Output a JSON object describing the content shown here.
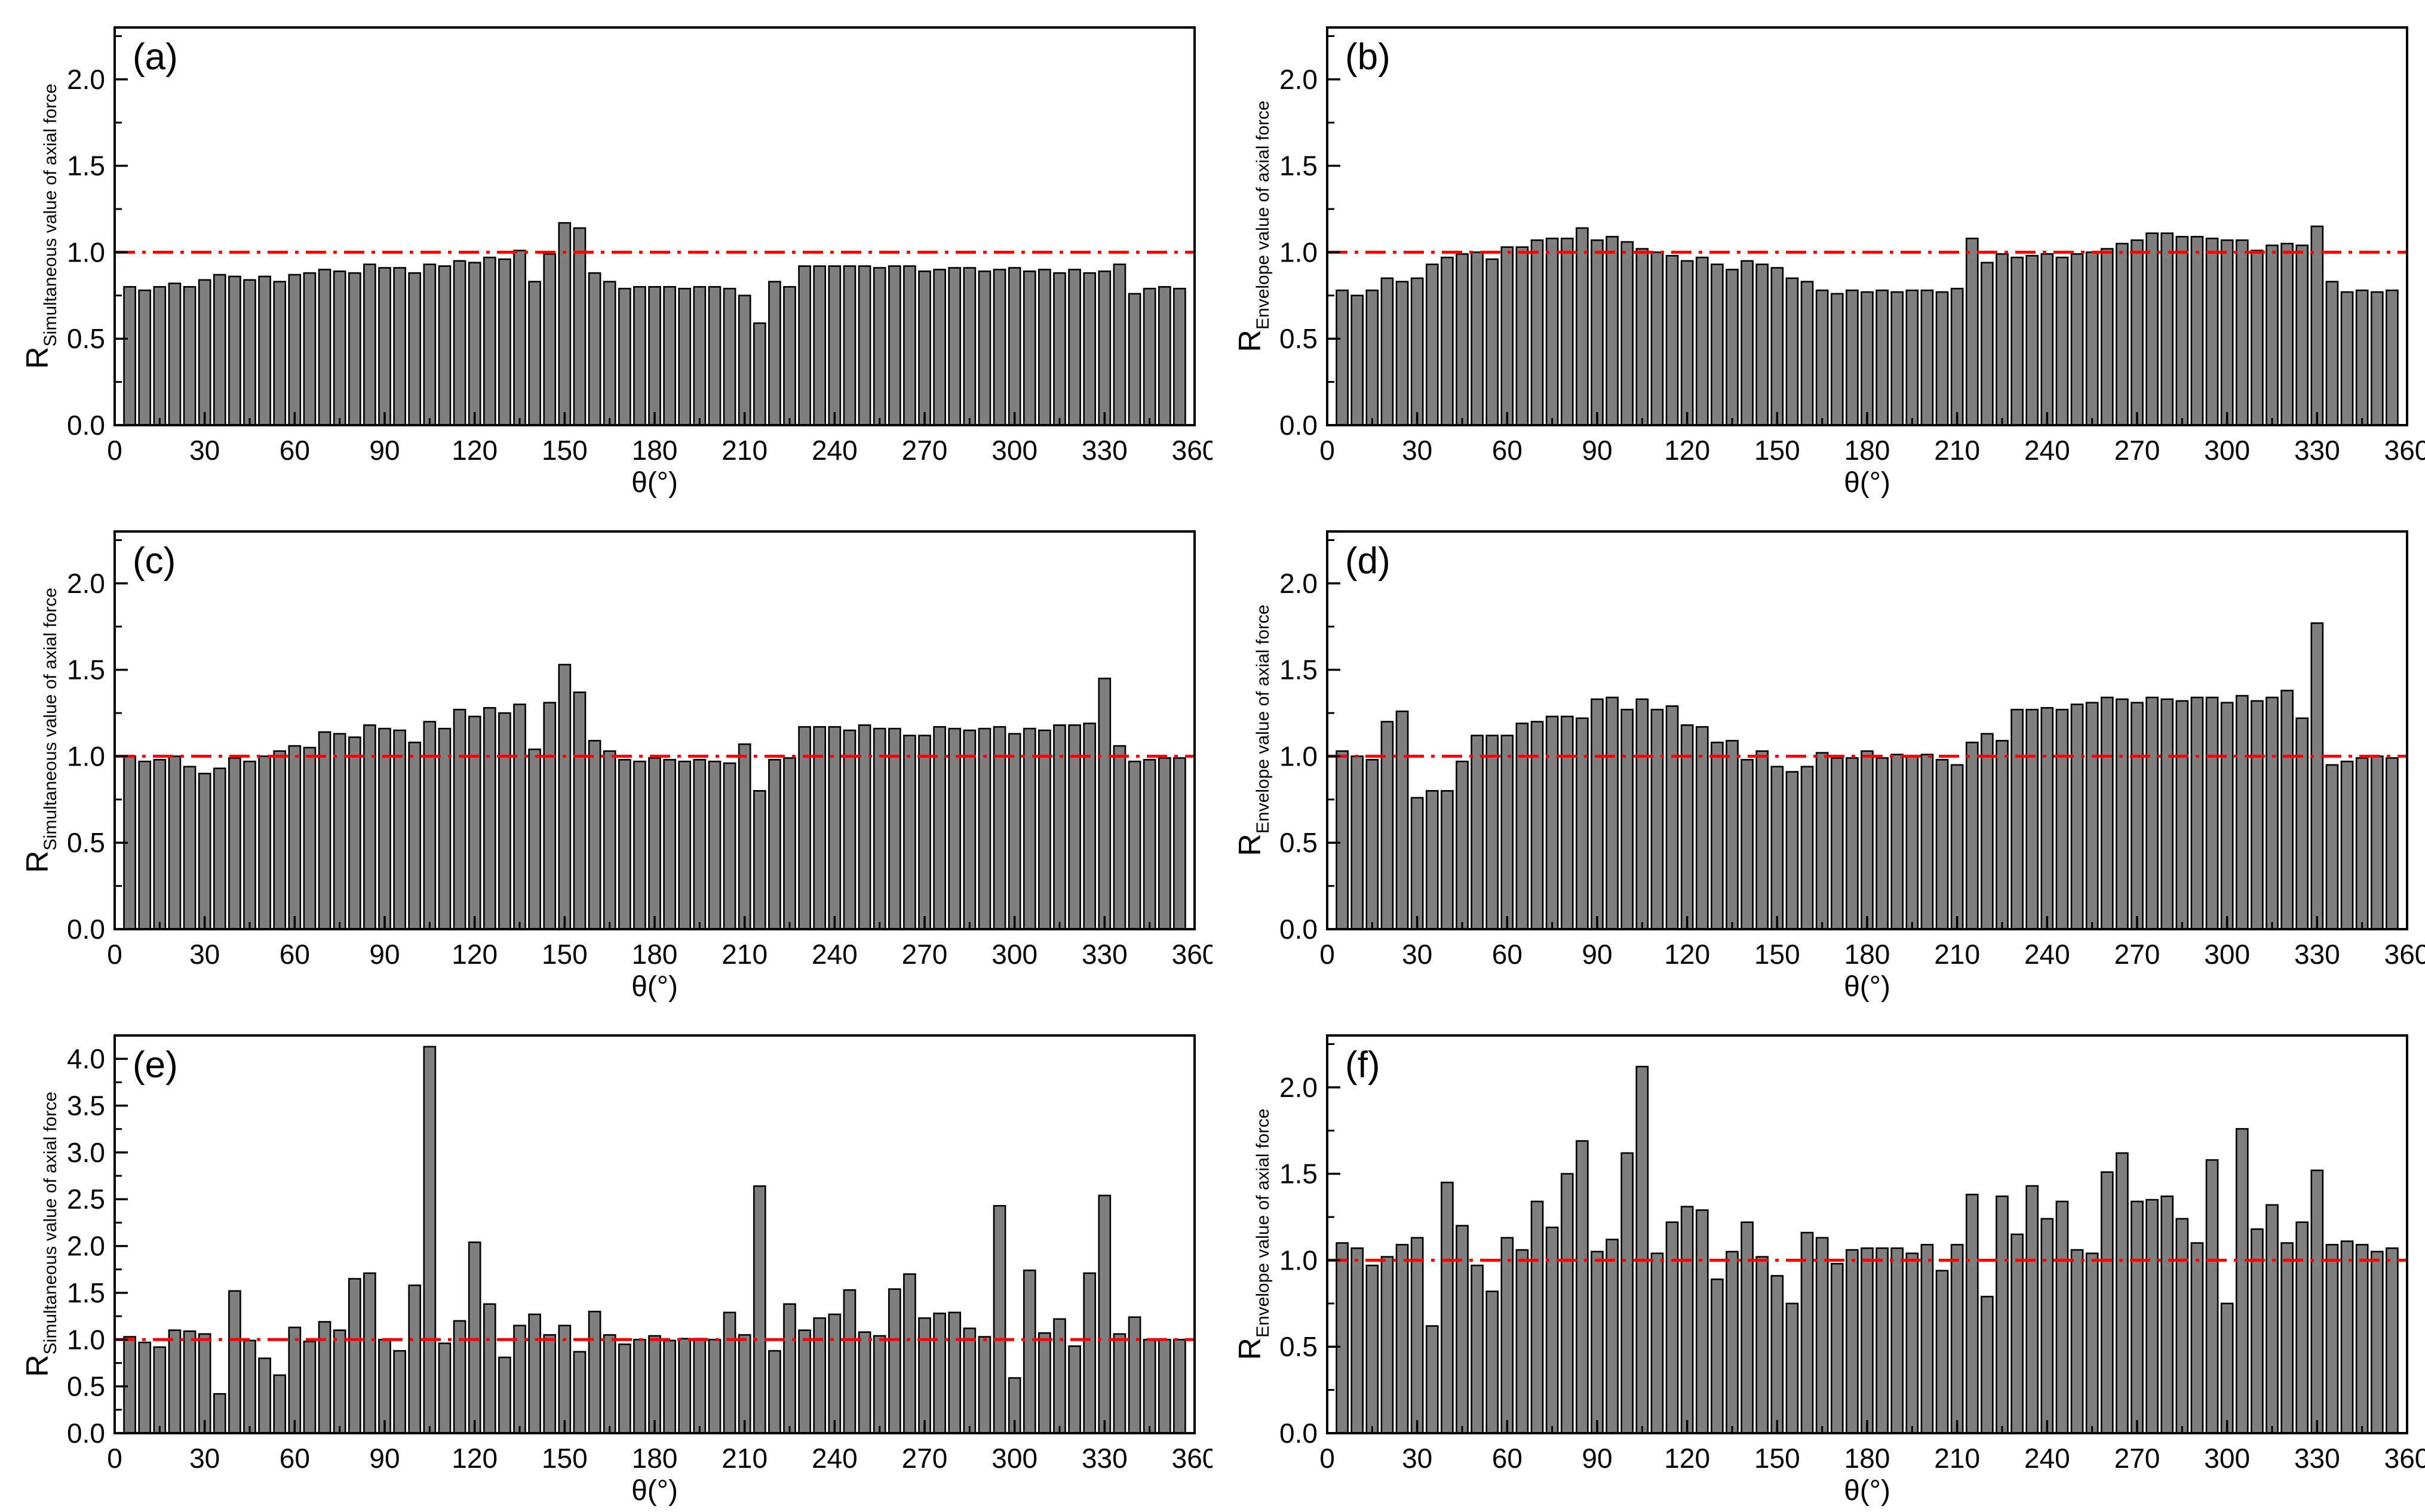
{
  "figure": {
    "background": "#ffffff",
    "bar_color": "#7f7f7f",
    "reference_line_color": "#ff0000"
  },
  "chart_data": [
    {
      "type": "bar",
      "panel_label": "(a)",
      "ylabel_main": "R",
      "ylabel_sub": "Simultaneous value of axial force",
      "xlabel": "θ(°)",
      "xlim": [
        0,
        360
      ],
      "ylim": [
        0,
        2.3
      ],
      "xticks": [
        "0",
        "30",
        "60",
        "90",
        "120",
        "150",
        "180",
        "210",
        "240",
        "270",
        "300",
        "330",
        "360"
      ],
      "yticks": [
        "0.0",
        "0.5",
        "1.0",
        "1.5",
        "2.0"
      ],
      "ytick_values": [
        0,
        0.5,
        1.0,
        1.5,
        2.0
      ],
      "reference_line": 1.0,
      "x": [
        5,
        10,
        15,
        20,
        25,
        30,
        35,
        40,
        45,
        50,
        55,
        60,
        65,
        70,
        75,
        80,
        85,
        90,
        95,
        100,
        105,
        110,
        115,
        120,
        125,
        130,
        135,
        140,
        145,
        150,
        155,
        160,
        165,
        170,
        175,
        180,
        185,
        190,
        195,
        200,
        205,
        210,
        215,
        220,
        225,
        230,
        235,
        240,
        245,
        250,
        255,
        260,
        265,
        270,
        275,
        280,
        285,
        290,
        295,
        300,
        305,
        310,
        315,
        320,
        325,
        330,
        335,
        340,
        345,
        350,
        355
      ],
      "values": [
        0.8,
        0.78,
        0.8,
        0.82,
        0.8,
        0.84,
        0.87,
        0.86,
        0.84,
        0.86,
        0.83,
        0.87,
        0.88,
        0.9,
        0.89,
        0.88,
        0.93,
        0.91,
        0.91,
        0.88,
        0.93,
        0.92,
        0.95,
        0.94,
        0.97,
        0.96,
        1.01,
        0.83,
        0.99,
        1.17,
        1.14,
        0.88,
        0.83,
        0.79,
        0.8,
        0.8,
        0.8,
        0.79,
        0.8,
        0.8,
        0.79,
        0.75,
        0.59,
        0.83,
        0.8,
        0.92,
        0.92,
        0.92,
        0.92,
        0.92,
        0.91,
        0.92,
        0.92,
        0.89,
        0.9,
        0.91,
        0.91,
        0.89,
        0.9,
        0.91,
        0.89,
        0.9,
        0.88,
        0.9,
        0.88,
        0.89,
        0.93,
        0.76,
        0.79,
        0.8,
        0.79
      ]
    },
    {
      "type": "bar",
      "panel_label": "(b)",
      "ylabel_main": "R",
      "ylabel_sub": "Envelope value of axial force",
      "xlabel": "θ(°)",
      "xlim": [
        0,
        360
      ],
      "ylim": [
        0,
        2.3
      ],
      "xticks": [
        "0",
        "30",
        "60",
        "90",
        "120",
        "150",
        "180",
        "210",
        "240",
        "270",
        "300",
        "330",
        "360"
      ],
      "yticks": [
        "0.0",
        "0.5",
        "1.0",
        "1.5",
        "2.0"
      ],
      "ytick_values": [
        0,
        0.5,
        1.0,
        1.5,
        2.0
      ],
      "reference_line": 1.0,
      "x": [
        5,
        10,
        15,
        20,
        25,
        30,
        35,
        40,
        45,
        50,
        55,
        60,
        65,
        70,
        75,
        80,
        85,
        90,
        95,
        100,
        105,
        110,
        115,
        120,
        125,
        130,
        135,
        140,
        145,
        150,
        155,
        160,
        165,
        170,
        175,
        180,
        185,
        190,
        195,
        200,
        205,
        210,
        215,
        220,
        225,
        230,
        235,
        240,
        245,
        250,
        255,
        260,
        265,
        270,
        275,
        280,
        285,
        290,
        295,
        300,
        305,
        310,
        315,
        320,
        325,
        330,
        335,
        340,
        345,
        350,
        355
      ],
      "values": [
        0.78,
        0.75,
        0.78,
        0.85,
        0.83,
        0.85,
        0.93,
        0.97,
        0.99,
        1.0,
        0.96,
        1.03,
        1.03,
        1.07,
        1.08,
        1.08,
        1.14,
        1.07,
        1.09,
        1.06,
        1.02,
        1.0,
        0.98,
        0.95,
        0.97,
        0.93,
        0.9,
        0.95,
        0.93,
        0.91,
        0.85,
        0.83,
        0.78,
        0.76,
        0.78,
        0.77,
        0.78,
        0.77,
        0.78,
        0.78,
        0.77,
        0.79,
        1.08,
        0.94,
        0.99,
        0.97,
        0.98,
        0.99,
        0.97,
        0.99,
        1.0,
        1.02,
        1.05,
        1.07,
        1.11,
        1.11,
        1.09,
        1.09,
        1.08,
        1.07,
        1.07,
        1.01,
        1.04,
        1.05,
        1.04,
        1.15,
        0.83,
        0.77,
        0.78,
        0.77,
        0.78
      ]
    },
    {
      "type": "bar",
      "panel_label": "(c)",
      "ylabel_main": "R",
      "ylabel_sub": "Simultaneous value of axial force",
      "xlabel": "θ(°)",
      "xlim": [
        0,
        360
      ],
      "ylim": [
        0,
        2.3
      ],
      "xticks": [
        "0",
        "30",
        "60",
        "90",
        "120",
        "150",
        "180",
        "210",
        "240",
        "270",
        "300",
        "330",
        "360"
      ],
      "yticks": [
        "0.0",
        "0.5",
        "1.0",
        "1.5",
        "2.0"
      ],
      "ytick_values": [
        0,
        0.5,
        1.0,
        1.5,
        2.0
      ],
      "reference_line": 1.0,
      "x": [
        5,
        10,
        15,
        20,
        25,
        30,
        35,
        40,
        45,
        50,
        55,
        60,
        65,
        70,
        75,
        80,
        85,
        90,
        95,
        100,
        105,
        110,
        115,
        120,
        125,
        130,
        135,
        140,
        145,
        150,
        155,
        160,
        165,
        170,
        175,
        180,
        185,
        190,
        195,
        200,
        205,
        210,
        215,
        220,
        225,
        230,
        235,
        240,
        245,
        250,
        255,
        260,
        265,
        270,
        275,
        280,
        285,
        290,
        295,
        300,
        305,
        310,
        315,
        320,
        325,
        330,
        335,
        340,
        345,
        350,
        355
      ],
      "values": [
        1.0,
        0.97,
        0.98,
        1.0,
        0.94,
        0.9,
        0.93,
        0.99,
        0.97,
        1.0,
        1.03,
        1.06,
        1.05,
        1.14,
        1.13,
        1.11,
        1.18,
        1.16,
        1.15,
        1.08,
        1.2,
        1.16,
        1.27,
        1.23,
        1.28,
        1.25,
        1.3,
        1.04,
        1.31,
        1.53,
        1.37,
        1.09,
        1.03,
        0.98,
        0.97,
        0.99,
        0.98,
        0.97,
        0.98,
        0.97,
        0.96,
        1.07,
        0.8,
        0.98,
        0.99,
        1.17,
        1.17,
        1.17,
        1.15,
        1.18,
        1.16,
        1.16,
        1.12,
        1.12,
        1.17,
        1.16,
        1.15,
        1.16,
        1.17,
        1.13,
        1.16,
        1.15,
        1.18,
        1.18,
        1.19,
        1.45,
        1.06,
        0.97,
        0.98,
        0.99,
        0.99
      ]
    },
    {
      "type": "bar",
      "panel_label": "(d)",
      "ylabel_main": "R",
      "ylabel_sub": "Envelope value of axial force",
      "xlabel": "θ(°)",
      "xlim": [
        0,
        360
      ],
      "ylim": [
        0,
        2.3
      ],
      "xticks": [
        "0",
        "30",
        "60",
        "90",
        "120",
        "150",
        "180",
        "210",
        "240",
        "270",
        "300",
        "330",
        "360"
      ],
      "yticks": [
        "0.0",
        "0.5",
        "1.0",
        "1.5",
        "2.0"
      ],
      "ytick_values": [
        0,
        0.5,
        1.0,
        1.5,
        2.0
      ],
      "reference_line": 1.0,
      "x": [
        5,
        10,
        15,
        20,
        25,
        30,
        35,
        40,
        45,
        50,
        55,
        60,
        65,
        70,
        75,
        80,
        85,
        90,
        95,
        100,
        105,
        110,
        115,
        120,
        125,
        130,
        135,
        140,
        145,
        150,
        155,
        160,
        165,
        170,
        175,
        180,
        185,
        190,
        195,
        200,
        205,
        210,
        215,
        220,
        225,
        230,
        235,
        240,
        245,
        250,
        255,
        260,
        265,
        270,
        275,
        280,
        285,
        290,
        295,
        300,
        305,
        310,
        315,
        320,
        325,
        330,
        335,
        340,
        345,
        350,
        355
      ],
      "values": [
        1.03,
        1.0,
        0.98,
        1.2,
        1.26,
        0.76,
        0.8,
        0.8,
        0.97,
        1.12,
        1.12,
        1.12,
        1.19,
        1.2,
        1.23,
        1.23,
        1.22,
        1.33,
        1.34,
        1.27,
        1.33,
        1.27,
        1.29,
        1.18,
        1.17,
        1.08,
        1.09,
        0.98,
        1.03,
        0.94,
        0.91,
        0.94,
        1.02,
        0.99,
        0.99,
        1.03,
        0.99,
        1.01,
        1.0,
        1.01,
        0.98,
        0.95,
        1.08,
        1.13,
        1.09,
        1.27,
        1.27,
        1.28,
        1.27,
        1.3,
        1.31,
        1.34,
        1.33,
        1.31,
        1.34,
        1.33,
        1.32,
        1.34,
        1.34,
        1.31,
        1.35,
        1.32,
        1.34,
        1.38,
        1.22,
        1.77,
        0.95,
        0.97,
        0.99,
        1.0,
        0.99
      ]
    },
    {
      "type": "bar",
      "panel_label": "(e)",
      "ylabel_main": "R",
      "ylabel_sub": "Simultaneous value of axial force",
      "xlabel": "θ(°)",
      "xlim": [
        0,
        360
      ],
      "ylim": [
        0,
        4.25
      ],
      "xticks": [
        "0",
        "30",
        "60",
        "90",
        "120",
        "150",
        "180",
        "210",
        "240",
        "270",
        "300",
        "330",
        "360"
      ],
      "yticks": [
        "0.0",
        "0.5",
        "1.0",
        "1.5",
        "2.0",
        "2.5",
        "3.0",
        "3.5",
        "4.0"
      ],
      "ytick_values": [
        0,
        0.5,
        1.0,
        1.5,
        2.0,
        2.5,
        3.0,
        3.5,
        4.0
      ],
      "reference_line": 1.0,
      "x": [
        5,
        10,
        15,
        20,
        25,
        30,
        35,
        40,
        45,
        50,
        55,
        60,
        65,
        70,
        75,
        80,
        85,
        90,
        95,
        100,
        105,
        110,
        115,
        120,
        125,
        130,
        135,
        140,
        145,
        150,
        155,
        160,
        165,
        170,
        175,
        180,
        185,
        190,
        195,
        200,
        205,
        210,
        215,
        220,
        225,
        230,
        235,
        240,
        245,
        250,
        255,
        260,
        265,
        270,
        275,
        280,
        285,
        290,
        295,
        300,
        305,
        310,
        315,
        320,
        325,
        330,
        335,
        340,
        345,
        350,
        355
      ],
      "values": [
        1.03,
        0.97,
        0.92,
        1.1,
        1.09,
        1.06,
        0.42,
        1.52,
        0.99,
        0.8,
        0.62,
        1.13,
        0.98,
        1.19,
        1.1,
        1.65,
        1.71,
        1.0,
        0.88,
        1.58,
        4.13,
        0.96,
        1.2,
        2.04,
        1.38,
        0.81,
        1.15,
        1.27,
        1.05,
        1.15,
        0.87,
        1.3,
        1.05,
        0.95,
        1.0,
        1.04,
        0.99,
        1.01,
        1.01,
        1.0,
        1.29,
        1.05,
        2.64,
        0.88,
        1.38,
        1.1,
        1.23,
        1.27,
        1.53,
        1.08,
        1.04,
        1.54,
        1.7,
        1.23,
        1.28,
        1.29,
        1.12,
        1.03,
        2.43,
        0.59,
        1.74,
        1.07,
        1.22,
        0.93,
        1.71,
        2.54,
        1.06,
        1.24,
        1.0,
        1.0,
        1.0
      ]
    },
    {
      "type": "bar",
      "panel_label": "(f)",
      "ylabel_main": "R",
      "ylabel_sub": "Envelope value of axial force",
      "xlabel": "θ(°)",
      "xlim": [
        0,
        360
      ],
      "ylim": [
        0,
        2.3
      ],
      "xticks": [
        "0",
        "30",
        "60",
        "90",
        "120",
        "150",
        "180",
        "210",
        "240",
        "270",
        "300",
        "330",
        "360"
      ],
      "yticks": [
        "0.0",
        "0.5",
        "1.0",
        "1.5",
        "2.0"
      ],
      "ytick_values": [
        0,
        0.5,
        1.0,
        1.5,
        2.0
      ],
      "reference_line": 1.0,
      "x": [
        5,
        10,
        15,
        20,
        25,
        30,
        35,
        40,
        45,
        50,
        55,
        60,
        65,
        70,
        75,
        80,
        85,
        90,
        95,
        100,
        105,
        110,
        115,
        120,
        125,
        130,
        135,
        140,
        145,
        150,
        155,
        160,
        165,
        170,
        175,
        180,
        185,
        190,
        195,
        200,
        205,
        210,
        215,
        220,
        225,
        230,
        235,
        240,
        245,
        250,
        255,
        260,
        265,
        270,
        275,
        280,
        285,
        290,
        295,
        300,
        305,
        310,
        315,
        320,
        325,
        330,
        335,
        340,
        345,
        350,
        355
      ],
      "values": [
        1.1,
        1.07,
        0.97,
        1.02,
        1.09,
        1.13,
        0.62,
        1.45,
        1.2,
        0.97,
        0.82,
        1.13,
        1.06,
        1.34,
        1.19,
        1.5,
        1.69,
        1.05,
        1.12,
        1.62,
        2.12,
        1.04,
        1.22,
        1.31,
        1.29,
        0.89,
        1.05,
        1.22,
        1.02,
        0.91,
        0.75,
        1.16,
        1.13,
        0.98,
        1.06,
        1.07,
        1.07,
        1.07,
        1.04,
        1.09,
        0.94,
        1.09,
        1.38,
        0.79,
        1.37,
        1.15,
        1.43,
        1.24,
        1.34,
        1.06,
        1.04,
        1.51,
        1.62,
        1.34,
        1.35,
        1.37,
        1.24,
        1.1,
        1.58,
        0.75,
        1.76,
        1.18,
        1.32,
        1.1,
        1.22,
        1.52,
        1.09,
        1.11,
        1.09,
        1.05,
        1.07
      ]
    }
  ]
}
